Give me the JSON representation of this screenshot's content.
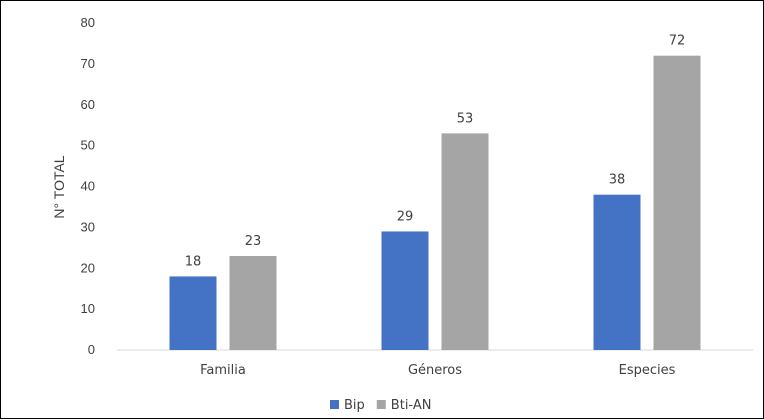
{
  "chart_data": {
    "type": "bar",
    "categories": [
      "Familia",
      "Géneros",
      "Especies"
    ],
    "series": [
      {
        "name": "Bip",
        "values": [
          18,
          29,
          38
        ],
        "color": "#4472C4"
      },
      {
        "name": "Bti-AN",
        "values": [
          23,
          53,
          72
        ],
        "color": "#A5A5A5"
      }
    ],
    "ylabel": "N° TOTAL",
    "ylim": [
      0,
      80
    ],
    "yticks": [
      0,
      10,
      20,
      30,
      40,
      50,
      60,
      70,
      80
    ],
    "grid": false,
    "legend": "bottom-center",
    "data_labels": true
  }
}
